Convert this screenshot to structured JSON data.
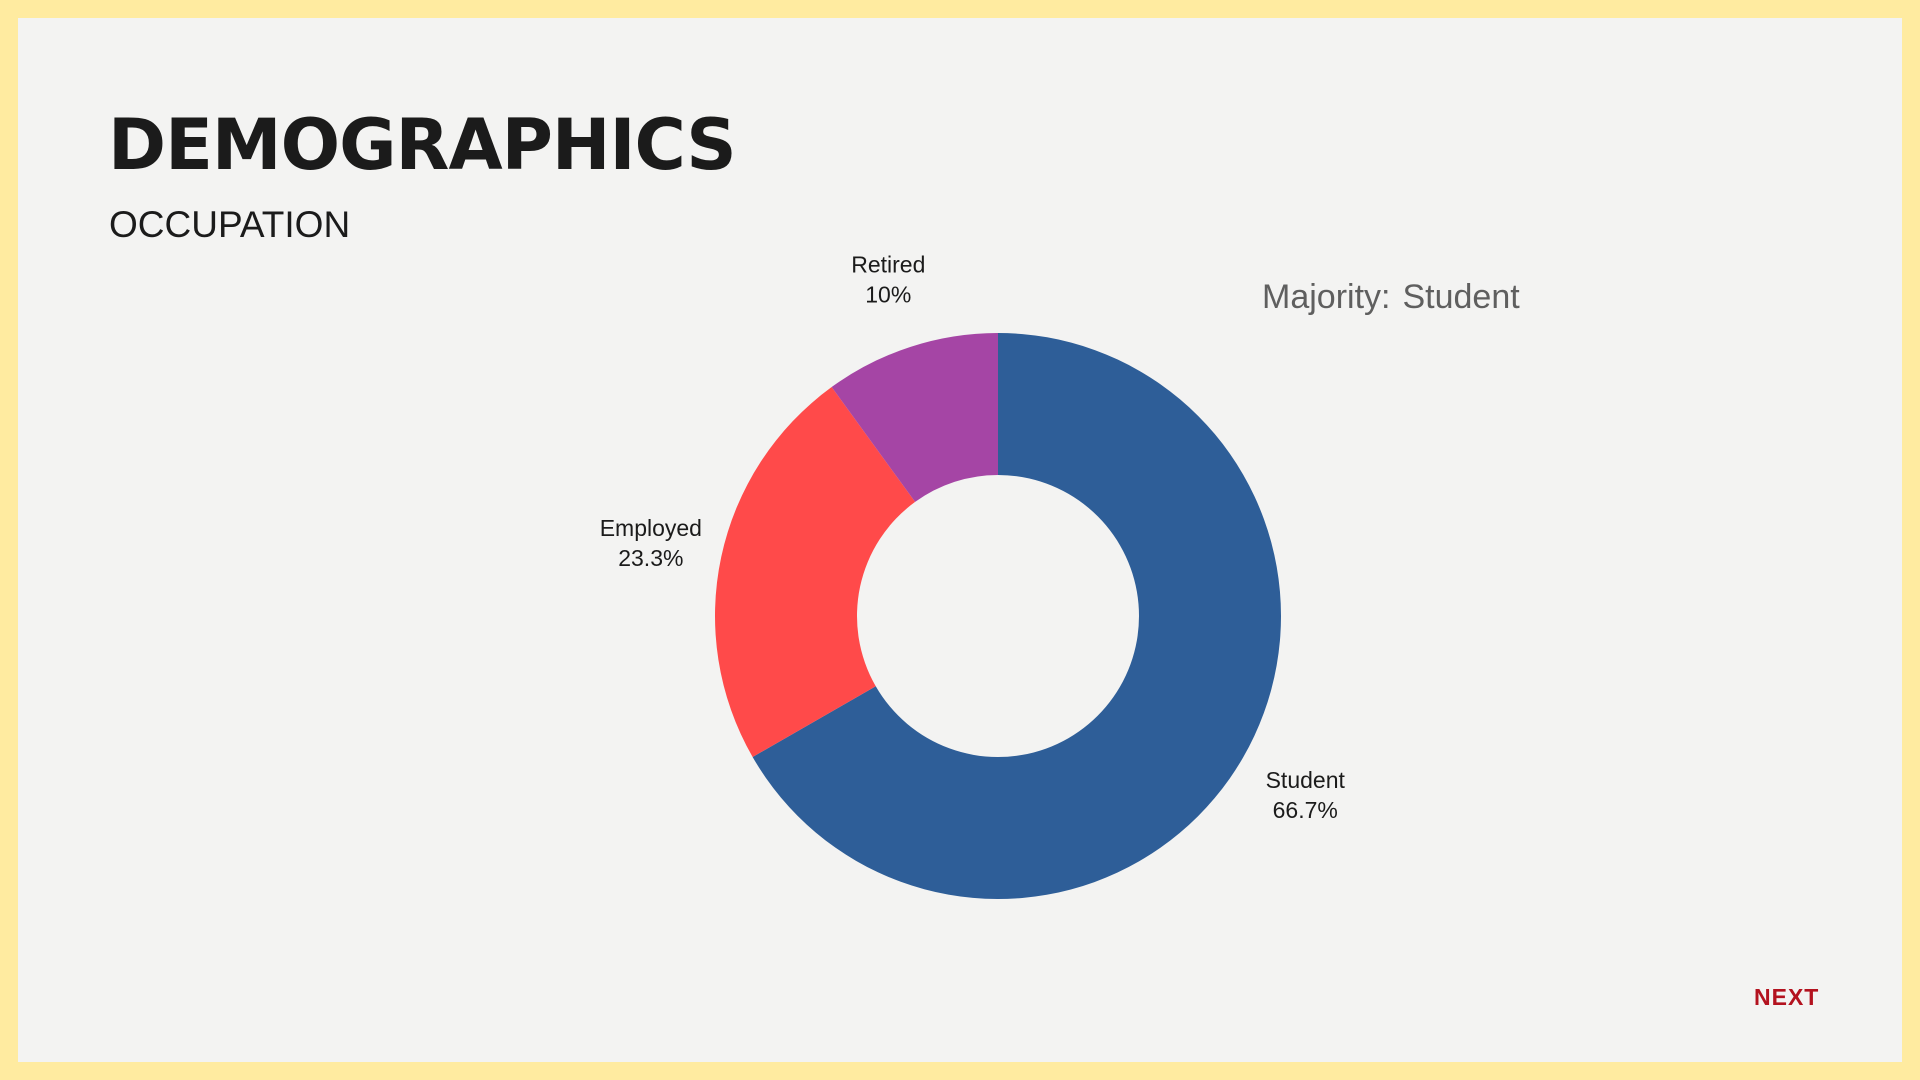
{
  "slide": {
    "title": "DEMOGRAPHICS",
    "subtitle": "OCCUPATION",
    "majority_label": "Majority:",
    "majority_value": "Student",
    "next_label": "NEXT"
  },
  "colors": {
    "frame": "#FFEBA0",
    "background": "#F3F3F2",
    "next": "#B3121F"
  },
  "chart_data": {
    "type": "pie",
    "donut": true,
    "categories": [
      "Student",
      "Employed",
      "Retired"
    ],
    "values": [
      66.7,
      23.3,
      10
    ],
    "value_labels": [
      "66.7%",
      "23.3%",
      "10%"
    ],
    "colors": [
      "#2E5E98",
      "#FF4A4A",
      "#A545A5"
    ],
    "start_angle_deg": 0,
    "direction": "clockwise",
    "title": "",
    "legend": "none"
  }
}
